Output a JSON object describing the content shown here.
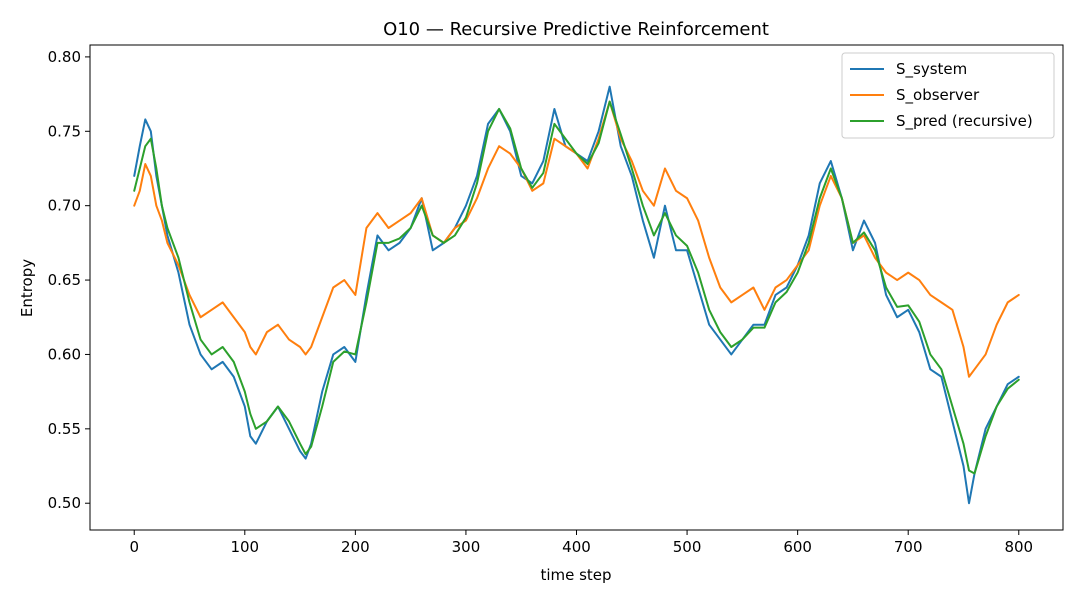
{
  "chart_data": {
    "type": "line",
    "title": "O10 — Recursive Predictive Reinforcement",
    "xlabel": "time step",
    "ylabel": "Entropy",
    "xlim": [
      -40,
      840
    ],
    "ylim": [
      0.482,
      0.808
    ],
    "xticks": [
      0,
      100,
      200,
      300,
      400,
      500,
      600,
      700,
      800
    ],
    "yticks": [
      0.5,
      0.55,
      0.6,
      0.65,
      0.7,
      0.75,
      0.8
    ],
    "xtick_labels": [
      "0",
      "100",
      "200",
      "300",
      "400",
      "500",
      "600",
      "700",
      "800"
    ],
    "ytick_labels": [
      "0.50",
      "0.55",
      "0.60",
      "0.65",
      "0.70",
      "0.75",
      "0.80"
    ],
    "grid": false,
    "legend_position": "top-right",
    "series": [
      {
        "name": "S_system",
        "color": "#1f77b4",
        "x": [
          0,
          5,
          10,
          15,
          20,
          25,
          30,
          40,
          50,
          60,
          70,
          80,
          90,
          100,
          105,
          110,
          120,
          130,
          140,
          150,
          155,
          160,
          170,
          180,
          190,
          200,
          210,
          220,
          230,
          240,
          250,
          260,
          270,
          280,
          290,
          300,
          310,
          320,
          330,
          340,
          350,
          360,
          370,
          380,
          390,
          400,
          410,
          420,
          430,
          440,
          450,
          460,
          470,
          480,
          490,
          500,
          510,
          520,
          530,
          540,
          550,
          560,
          570,
          580,
          590,
          600,
          610,
          620,
          630,
          640,
          650,
          660,
          670,
          680,
          690,
          700,
          710,
          720,
          730,
          740,
          750,
          755,
          760,
          770,
          780,
          790,
          800
        ],
        "y": [
          0.72,
          0.74,
          0.758,
          0.75,
          0.72,
          0.7,
          0.68,
          0.655,
          0.62,
          0.6,
          0.59,
          0.595,
          0.585,
          0.565,
          0.545,
          0.54,
          0.555,
          0.565,
          0.55,
          0.535,
          0.53,
          0.54,
          0.575,
          0.6,
          0.605,
          0.595,
          0.64,
          0.68,
          0.67,
          0.675,
          0.685,
          0.705,
          0.67,
          0.675,
          0.685,
          0.7,
          0.72,
          0.755,
          0.765,
          0.75,
          0.72,
          0.715,
          0.73,
          0.765,
          0.74,
          0.735,
          0.73,
          0.75,
          0.78,
          0.74,
          0.72,
          0.69,
          0.665,
          0.7,
          0.67,
          0.67,
          0.645,
          0.62,
          0.61,
          0.6,
          0.61,
          0.62,
          0.62,
          0.64,
          0.645,
          0.66,
          0.68,
          0.715,
          0.73,
          0.705,
          0.67,
          0.69,
          0.675,
          0.64,
          0.625,
          0.63,
          0.615,
          0.59,
          0.585,
          0.555,
          0.525,
          0.5,
          0.52,
          0.55,
          0.565,
          0.58,
          0.585
        ]
      },
      {
        "name": "S_observer",
        "color": "#ff7f0e",
        "x": [
          0,
          5,
          10,
          15,
          20,
          25,
          30,
          40,
          50,
          60,
          70,
          80,
          90,
          100,
          105,
          110,
          120,
          130,
          140,
          150,
          155,
          160,
          170,
          180,
          190,
          200,
          210,
          220,
          230,
          240,
          250,
          260,
          270,
          280,
          290,
          300,
          310,
          320,
          330,
          340,
          350,
          360,
          370,
          380,
          390,
          400,
          410,
          420,
          430,
          440,
          450,
          460,
          470,
          480,
          490,
          500,
          510,
          520,
          530,
          540,
          550,
          560,
          570,
          580,
          590,
          600,
          610,
          620,
          630,
          640,
          650,
          660,
          670,
          680,
          690,
          700,
          710,
          720,
          730,
          740,
          750,
          755,
          760,
          770,
          780,
          790,
          800
        ],
        "y": [
          0.7,
          0.71,
          0.728,
          0.72,
          0.7,
          0.69,
          0.675,
          0.66,
          0.64,
          0.625,
          0.63,
          0.635,
          0.625,
          0.615,
          0.605,
          0.6,
          0.615,
          0.62,
          0.61,
          0.605,
          0.6,
          0.605,
          0.625,
          0.645,
          0.65,
          0.64,
          0.685,
          0.695,
          0.685,
          0.69,
          0.695,
          0.705,
          0.68,
          0.675,
          0.685,
          0.69,
          0.705,
          0.725,
          0.74,
          0.735,
          0.725,
          0.71,
          0.715,
          0.745,
          0.74,
          0.735,
          0.725,
          0.745,
          0.77,
          0.745,
          0.73,
          0.71,
          0.7,
          0.725,
          0.71,
          0.705,
          0.69,
          0.665,
          0.645,
          0.635,
          0.64,
          0.645,
          0.63,
          0.645,
          0.65,
          0.66,
          0.67,
          0.7,
          0.72,
          0.705,
          0.675,
          0.68,
          0.665,
          0.655,
          0.65,
          0.655,
          0.65,
          0.64,
          0.635,
          0.63,
          0.605,
          0.585,
          0.59,
          0.6,
          0.62,
          0.635,
          0.64
        ]
      },
      {
        "name": "S_pred (recursive)",
        "color": "#2ca02c",
        "x": [
          0,
          5,
          10,
          15,
          20,
          25,
          30,
          40,
          50,
          60,
          70,
          80,
          90,
          100,
          105,
          110,
          120,
          130,
          140,
          150,
          155,
          160,
          170,
          180,
          190,
          200,
          210,
          220,
          230,
          240,
          250,
          260,
          270,
          280,
          290,
          300,
          310,
          320,
          330,
          340,
          350,
          360,
          370,
          380,
          390,
          400,
          410,
          420,
          430,
          440,
          450,
          460,
          470,
          480,
          490,
          500,
          510,
          520,
          530,
          540,
          550,
          560,
          570,
          580,
          590,
          600,
          610,
          620,
          630,
          640,
          650,
          660,
          670,
          680,
          690,
          700,
          710,
          720,
          730,
          740,
          750,
          755,
          760,
          770,
          780,
          790,
          800
        ],
        "y": [
          0.71,
          0.725,
          0.74,
          0.745,
          0.725,
          0.7,
          0.685,
          0.665,
          0.635,
          0.61,
          0.6,
          0.605,
          0.595,
          0.575,
          0.56,
          0.55,
          0.555,
          0.565,
          0.555,
          0.54,
          0.533,
          0.538,
          0.565,
          0.595,
          0.602,
          0.6,
          0.635,
          0.675,
          0.675,
          0.678,
          0.685,
          0.7,
          0.68,
          0.675,
          0.68,
          0.692,
          0.715,
          0.75,
          0.765,
          0.752,
          0.725,
          0.712,
          0.722,
          0.755,
          0.745,
          0.735,
          0.728,
          0.742,
          0.77,
          0.748,
          0.725,
          0.7,
          0.68,
          0.695,
          0.68,
          0.673,
          0.655,
          0.63,
          0.615,
          0.605,
          0.61,
          0.618,
          0.618,
          0.635,
          0.642,
          0.655,
          0.675,
          0.705,
          0.725,
          0.705,
          0.675,
          0.682,
          0.67,
          0.645,
          0.632,
          0.633,
          0.622,
          0.6,
          0.59,
          0.565,
          0.54,
          0.522,
          0.52,
          0.545,
          0.565,
          0.577,
          0.583
        ]
      }
    ]
  }
}
